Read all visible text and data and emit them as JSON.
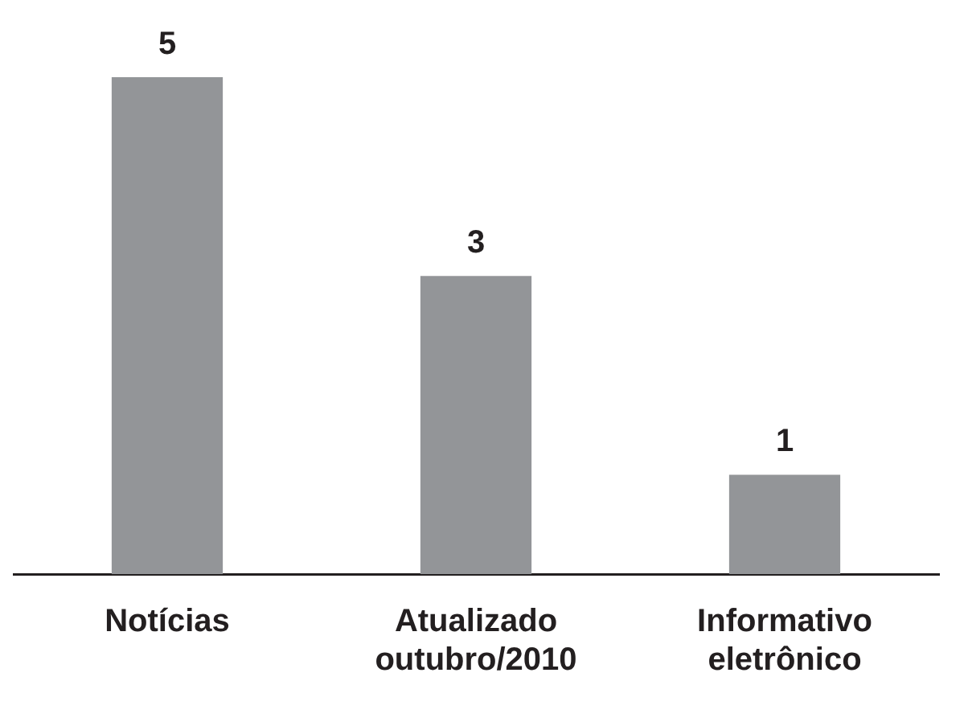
{
  "chart_data": {
    "type": "bar",
    "categories": [
      "Notícias",
      "Atualizado outubro/2010",
      "Informativo eletrônico"
    ],
    "values": [
      5,
      3,
      1
    ],
    "color": "#939598",
    "data_labels": true,
    "grid": false,
    "legend": false
  }
}
